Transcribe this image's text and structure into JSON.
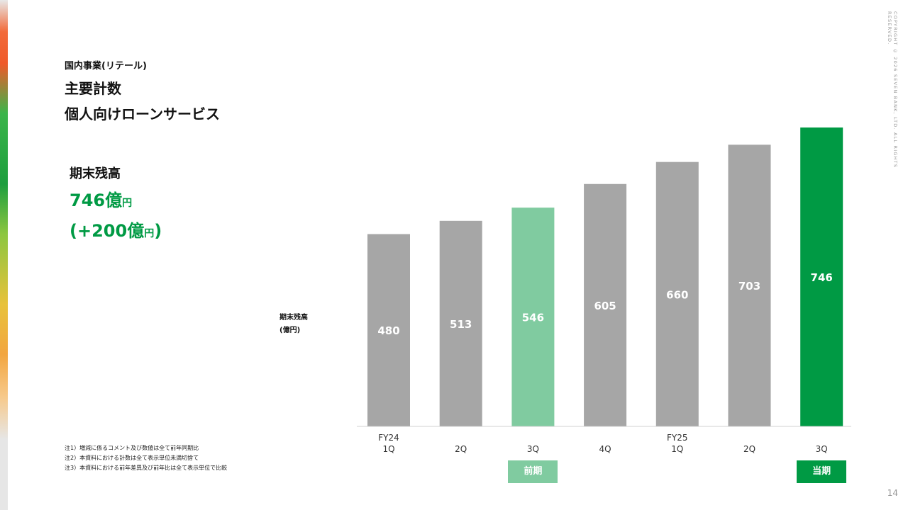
{
  "section": "国内事業(リテール)",
  "title_line1": "主要計数",
  "title_line2": "個人向けローンサービス",
  "kpi": {
    "label": "期末残高",
    "value": "746",
    "value_unit_big": "億",
    "value_unit_small": "円",
    "diff_open": "(",
    "diff_value": "+200",
    "diff_unit_big": "億",
    "diff_unit_small": "円",
    "diff_close": ")"
  },
  "axis_label": {
    "line1": "期末残高",
    "line2": "(億円)"
  },
  "copyright": "COPYRIGHT © 2026 SEVEN BANK, LTD. ALL RIGHTS RESERVED.",
  "notes": [
    "注1）増減に係るコメント及び数値は全て前年同期比",
    "注2）本資料における計数は全て表示単位未満切捨て",
    "注3）本資料における前年差異及び前年比は全て表示単位で比較"
  ],
  "page_number": "14",
  "badges": {
    "previous": "前期",
    "current": "当期"
  },
  "colors": {
    "accent": "#009a44",
    "bar_default": "#a6a6a6",
    "bar_previous": "#80cba0",
    "bar_current": "#009a44"
  },
  "chart_data": {
    "type": "bar",
    "categories": [
      "FY24\n1Q",
      "2Q",
      "3Q",
      "4Q",
      "FY25\n1Q",
      "2Q",
      "3Q"
    ],
    "values": [
      480,
      513,
      546,
      605,
      660,
      703,
      746
    ],
    "highlight": {
      "previous_index": 2,
      "current_index": 6
    },
    "ylim": [
      0,
      746
    ],
    "grid": false,
    "legend": "none"
  }
}
